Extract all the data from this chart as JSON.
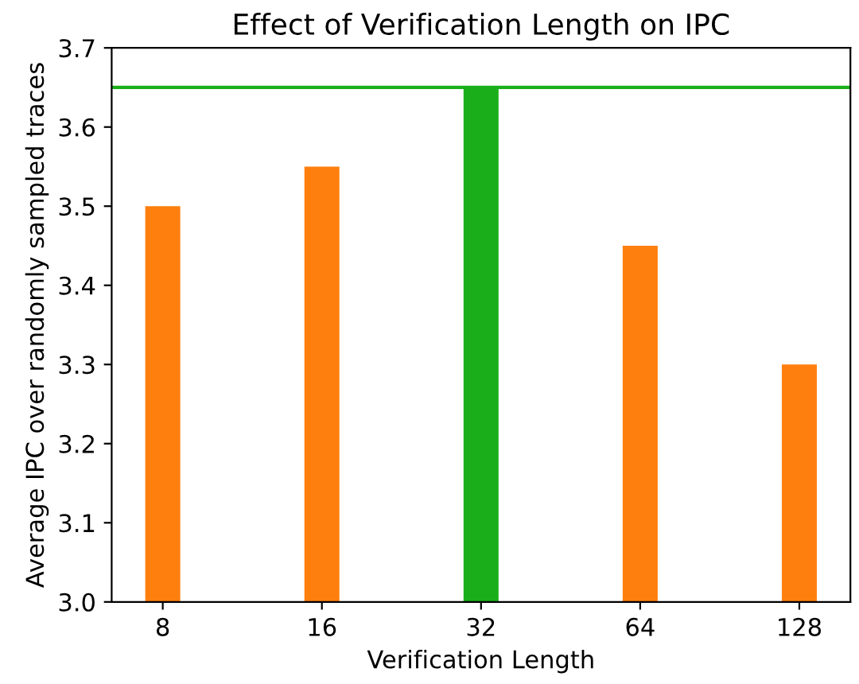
{
  "chart_data": {
    "type": "bar",
    "title": "Effect of Verification Length on IPC",
    "xlabel": "Verification Length",
    "ylabel": "Average IPC over randomly sampled traces",
    "categories": [
      "8",
      "16",
      "32",
      "64",
      "128"
    ],
    "values": [
      3.5,
      3.55,
      3.65,
      3.45,
      3.3
    ],
    "colors": [
      "#ff7f0e",
      "#ff7f0e",
      "#1aaf1a",
      "#ff7f0e",
      "#ff7f0e"
    ],
    "ylim": [
      3.0,
      3.7
    ],
    "yticks": [
      {
        "value": 3.0,
        "label": "3.0"
      },
      {
        "value": 3.1,
        "label": "3.1"
      },
      {
        "value": 3.2,
        "label": "3.2"
      },
      {
        "value": 3.3,
        "label": "3.3"
      },
      {
        "value": 3.4,
        "label": "3.4"
      },
      {
        "value": 3.5,
        "label": "3.5"
      },
      {
        "value": 3.6,
        "label": "3.6"
      },
      {
        "value": 3.7,
        "label": "3.7"
      }
    ],
    "ref_lines": [
      {
        "axis": "y",
        "value": 3.65,
        "label": null,
        "color": "#1aaf1a"
      }
    ],
    "grid": false,
    "legend": false
  }
}
